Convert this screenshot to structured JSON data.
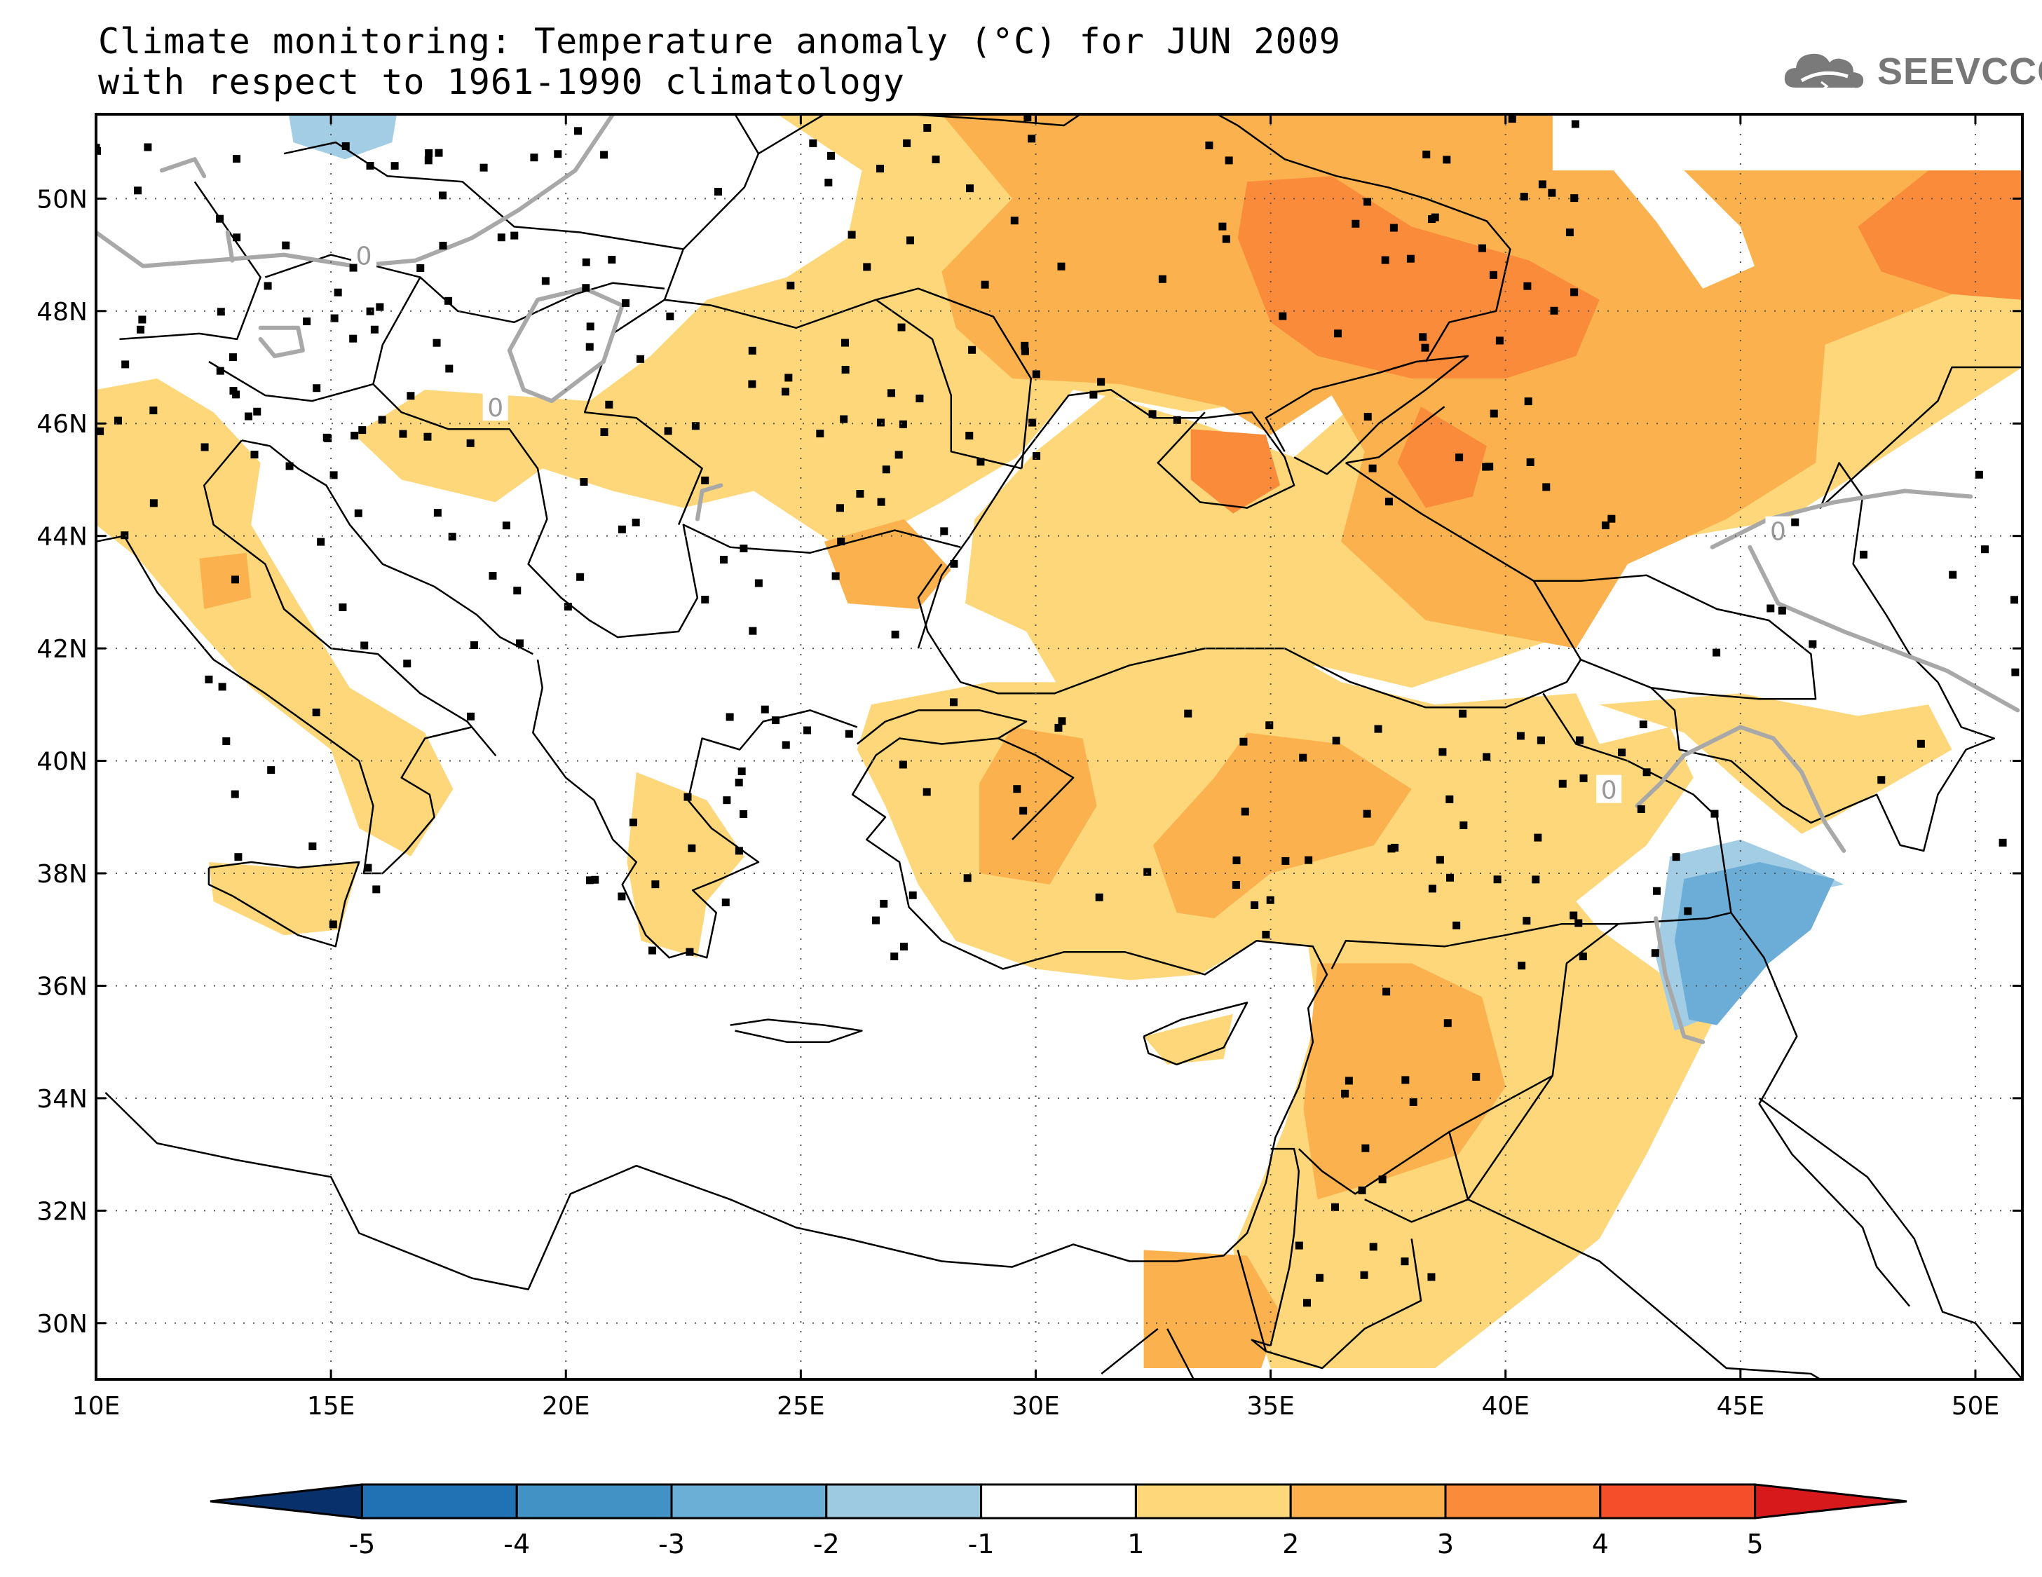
{
  "title_line1": "Climate monitoring: Temperature anomaly (°C) for JUN 2009",
  "title_line2": "with respect to 1961-1990 climatology",
  "logo": {
    "icon": "cloud-icon",
    "text": "SEEVCCC"
  },
  "map": {
    "lon_range": [
      10,
      51
    ],
    "lat_range": [
      29,
      51.5
    ],
    "lon_ticks": [
      {
        "value": 10,
        "label": "10E"
      },
      {
        "value": 15,
        "label": "15E"
      },
      {
        "value": 20,
        "label": "20E"
      },
      {
        "value": 25,
        "label": "25E"
      },
      {
        "value": 30,
        "label": "30E"
      },
      {
        "value": 35,
        "label": "35E"
      },
      {
        "value": 40,
        "label": "40E"
      },
      {
        "value": 45,
        "label": "45E"
      },
      {
        "value": 50,
        "label": "50E"
      }
    ],
    "lat_ticks": [
      {
        "value": 30,
        "label": "30N"
      },
      {
        "value": 32,
        "label": "32N"
      },
      {
        "value": 34,
        "label": "34N"
      },
      {
        "value": 36,
        "label": "36N"
      },
      {
        "value": 38,
        "label": "38N"
      },
      {
        "value": 40,
        "label": "40N"
      },
      {
        "value": 42,
        "label": "42N"
      },
      {
        "value": 44,
        "label": "44N"
      },
      {
        "value": 46,
        "label": "46N"
      },
      {
        "value": 48,
        "label": "48N"
      },
      {
        "value": 50,
        "label": "50N"
      }
    ],
    "zero_contour_label": "0",
    "anomaly_regions": [
      {
        "class": "1 to 2",
        "color": "#fdd77a",
        "polygon": [
          [
            24.5,
            51.5
          ],
          [
            41,
            51.5
          ],
          [
            41,
            50.5
          ],
          [
            51,
            50.5
          ],
          [
            51,
            47
          ],
          [
            46,
            44.3
          ],
          [
            42.5,
            43.8
          ],
          [
            41.5,
            42.3
          ],
          [
            38,
            41.3
          ],
          [
            36,
            41.7
          ],
          [
            33,
            41.2
          ],
          [
            30.5,
            41.3
          ],
          [
            29.8,
            42.3
          ],
          [
            28.5,
            42.8
          ],
          [
            28.7,
            44.3
          ],
          [
            30,
            45.5
          ],
          [
            31.5,
            46.5
          ],
          [
            33.5,
            46
          ],
          [
            35.5,
            45.4
          ],
          [
            37,
            46.5
          ],
          [
            38.5,
            47
          ],
          [
            37,
            47.3
          ],
          [
            35.5,
            46.5
          ],
          [
            33.3,
            46.2
          ],
          [
            30.8,
            46.6
          ],
          [
            29.6,
            45.4
          ],
          [
            28,
            44.6
          ],
          [
            26,
            43.7
          ],
          [
            24,
            44.8
          ],
          [
            22.5,
            44.5
          ],
          [
            21,
            44.8
          ],
          [
            19.5,
            45.2
          ],
          [
            18.5,
            44.6
          ],
          [
            16.5,
            45
          ],
          [
            15.5,
            45.8
          ],
          [
            17,
            46.6
          ],
          [
            20.5,
            46.4
          ],
          [
            21.8,
            47.2
          ],
          [
            23,
            48.2
          ],
          [
            24.7,
            48.6
          ],
          [
            26,
            49.3
          ],
          [
            26.3,
            50.5
          ]
        ]
      },
      {
        "class": "1 to 2",
        "color": "#fdd77a",
        "polygon": [
          [
            26.5,
            41
          ],
          [
            29,
            41.4
          ],
          [
            31,
            41.4
          ],
          [
            33.5,
            42
          ],
          [
            35,
            42.1
          ],
          [
            36.5,
            41.4
          ],
          [
            38.5,
            41
          ],
          [
            41.5,
            41.2
          ],
          [
            42,
            40.3
          ],
          [
            43.5,
            40.6
          ],
          [
            44,
            39.7
          ],
          [
            43,
            38.5
          ],
          [
            41.5,
            37.5
          ],
          [
            42,
            37
          ],
          [
            44.5,
            35.5
          ],
          [
            43,
            33
          ],
          [
            42,
            31.5
          ],
          [
            40.5,
            30.5
          ],
          [
            38.5,
            29.2
          ],
          [
            35,
            29.2
          ],
          [
            34.2,
            31.3
          ],
          [
            35.3,
            33.5
          ],
          [
            36,
            35.5
          ],
          [
            35.8,
            36.7
          ],
          [
            34.7,
            36.8
          ],
          [
            33.5,
            36.2
          ],
          [
            32,
            36.1
          ],
          [
            30,
            36.3
          ],
          [
            28.3,
            36.8
          ],
          [
            27.5,
            37.8
          ],
          [
            26.8,
            39.2
          ],
          [
            26.2,
            40.2
          ]
        ]
      },
      {
        "class": "1 to 2",
        "color": "#fdd77a",
        "polygon": [
          [
            42,
            41
          ],
          [
            45,
            41.2
          ],
          [
            47.5,
            40.8
          ],
          [
            49,
            41
          ],
          [
            49.5,
            40.2
          ],
          [
            47,
            39
          ],
          [
            46.3,
            38.7
          ],
          [
            45,
            39.6
          ],
          [
            43.8,
            40.5
          ]
        ]
      },
      {
        "class": "1 to 2",
        "color": "#fdd77a",
        "polygon": [
          [
            10,
            46.6
          ],
          [
            11.3,
            46.8
          ],
          [
            12.5,
            46.2
          ],
          [
            13.5,
            45.3
          ],
          [
            13.3,
            44.2
          ],
          [
            14.3,
            42.8
          ],
          [
            15.4,
            41.3
          ],
          [
            17,
            40.5
          ],
          [
            17.6,
            39.5
          ],
          [
            16.7,
            38.3
          ],
          [
            15.6,
            38.8
          ],
          [
            15,
            40.2
          ],
          [
            13.3,
            41.3
          ],
          [
            12.1,
            42.4
          ],
          [
            10.9,
            43.6
          ],
          [
            10,
            44.2
          ]
        ]
      },
      {
        "class": "1 to 2",
        "color": "#fdd77a",
        "polygon": [
          [
            12.4,
            38.2
          ],
          [
            14,
            38.1
          ],
          [
            15.6,
            38.2
          ],
          [
            15.2,
            37
          ],
          [
            14,
            36.9
          ],
          [
            12.5,
            37.5
          ]
        ]
      },
      {
        "class": "1 to 2",
        "color": "#fdd77a",
        "polygon": [
          [
            21.5,
            39.8
          ],
          [
            23,
            39.3
          ],
          [
            23.8,
            38.3
          ],
          [
            23,
            37.5
          ],
          [
            22.8,
            36.5
          ],
          [
            21.6,
            36.8
          ],
          [
            21.3,
            38.2
          ]
        ]
      },
      {
        "class": "1 to 2",
        "color": "#fdd77a",
        "polygon": [
          [
            32.3,
            35.1
          ],
          [
            34.2,
            35.5
          ],
          [
            34,
            34.7
          ],
          [
            32.8,
            34.6
          ]
        ]
      },
      {
        "class": "2 to 3",
        "color": "#fbb24e",
        "polygon": [
          [
            28,
            51.5
          ],
          [
            41,
            51.5
          ],
          [
            41,
            50.5
          ],
          [
            51,
            50.5
          ],
          [
            51,
            48.6
          ],
          [
            49.5,
            48.3
          ],
          [
            46.8,
            47.4
          ],
          [
            46.6,
            45.3
          ],
          [
            44.7,
            44.3
          ],
          [
            42.6,
            43.5
          ],
          [
            41.5,
            42
          ],
          [
            38.3,
            42.5
          ],
          [
            36.5,
            43.9
          ],
          [
            37,
            45.5
          ],
          [
            36.3,
            46.5
          ],
          [
            35,
            45.8
          ],
          [
            34,
            46.3
          ],
          [
            31.8,
            46.7
          ],
          [
            29.5,
            46.8
          ],
          [
            28.3,
            47.7
          ],
          [
            28,
            48.7
          ],
          [
            29.5,
            50
          ]
        ]
      },
      {
        "class": "2 to 3",
        "color": "#fbb24e",
        "polygon": [
          [
            34.5,
            40.5
          ],
          [
            36.5,
            40.3
          ],
          [
            38,
            39.5
          ],
          [
            37.2,
            38.5
          ],
          [
            35,
            38
          ],
          [
            33.8,
            37.2
          ],
          [
            33,
            37.3
          ],
          [
            32.5,
            38.5
          ],
          [
            33.8,
            39.7
          ]
        ]
      },
      {
        "class": "2 to 3",
        "color": "#fbb24e",
        "polygon": [
          [
            29.5,
            40.6
          ],
          [
            31,
            40.4
          ],
          [
            31.3,
            39.2
          ],
          [
            30.3,
            37.8
          ],
          [
            28.8,
            38
          ],
          [
            28.8,
            39.6
          ]
        ]
      },
      {
        "class": "2 to 3",
        "color": "#fbb24e",
        "polygon": [
          [
            36,
            36.4
          ],
          [
            38,
            36.4
          ],
          [
            39.5,
            35.8
          ],
          [
            40,
            34.2
          ],
          [
            39,
            33
          ],
          [
            37.2,
            32.5
          ],
          [
            36,
            32.2
          ],
          [
            35.7,
            33.8
          ]
        ]
      },
      {
        "class": "2 to 3",
        "color": "#fbb24e",
        "polygon": [
          [
            32.3,
            31.3
          ],
          [
            34.5,
            31.2
          ],
          [
            35.2,
            30.2
          ],
          [
            34.8,
            29.2
          ],
          [
            32.3,
            29.2
          ]
        ]
      },
      {
        "class": "2 to 3",
        "color": "#fbb24e",
        "polygon": [
          [
            25.5,
            43.9
          ],
          [
            27.2,
            44.3
          ],
          [
            28.2,
            43.4
          ],
          [
            27.5,
            42.7
          ],
          [
            26,
            42.8
          ]
        ]
      },
      {
        "class": "2 to 3",
        "color": "#fbb24e",
        "polygon": [
          [
            12.2,
            43.6
          ],
          [
            13.2,
            43.7
          ],
          [
            13.3,
            42.9
          ],
          [
            12.3,
            42.7
          ]
        ]
      },
      {
        "class": "3 to 4",
        "color": "#fa8b3a",
        "polygon": [
          [
            34.5,
            50.3
          ],
          [
            36.3,
            50.4
          ],
          [
            38,
            49.5
          ],
          [
            40.5,
            48.9
          ],
          [
            42,
            48.2
          ],
          [
            41.5,
            47.2
          ],
          [
            40,
            46.8
          ],
          [
            38,
            46.8
          ],
          [
            36,
            47.2
          ],
          [
            35,
            47.8
          ],
          [
            34.3,
            49.3
          ]
        ]
      },
      {
        "class": "3 to 4",
        "color": "#fa8b3a",
        "polygon": [
          [
            47.5,
            49.5
          ],
          [
            49,
            50.5
          ],
          [
            51,
            50.5
          ],
          [
            51,
            48.2
          ],
          [
            49.5,
            48.3
          ],
          [
            48,
            48.7
          ]
        ]
      },
      {
        "class": "3 to 4",
        "color": "#fa8b3a",
        "polygon": [
          [
            38.2,
            46.3
          ],
          [
            39.6,
            45.6
          ],
          [
            39.3,
            44.7
          ],
          [
            38.3,
            44.5
          ],
          [
            37.7,
            45.3
          ]
        ]
      },
      {
        "class": "3 to 4",
        "color": "#fa8b3a",
        "polygon": [
          [
            33.3,
            45.9
          ],
          [
            34.9,
            45.8
          ],
          [
            35.2,
            44.9
          ],
          [
            34.2,
            44.4
          ],
          [
            33.3,
            45
          ]
        ]
      },
      {
        "class": "-1 to -2",
        "color": "#a3cde5",
        "polygon": [
          [
            43.5,
            38.3
          ],
          [
            45,
            38.6
          ],
          [
            46.2,
            38.2
          ],
          [
            47.2,
            37.8
          ],
          [
            46,
            37.6
          ],
          [
            45.5,
            36.7
          ],
          [
            44.5,
            35.5
          ],
          [
            43.6,
            35.2
          ],
          [
            43.2,
            36.5
          ]
        ]
      },
      {
        "class": "-2 to -3",
        "color": "#6badd6",
        "polygon": [
          [
            43.8,
            37.9
          ],
          [
            45.4,
            38.2
          ],
          [
            47,
            37.9
          ],
          [
            46.5,
            37
          ],
          [
            45.6,
            36.4
          ],
          [
            44.5,
            35.3
          ],
          [
            43.9,
            35.4
          ],
          [
            43.6,
            36.8
          ]
        ]
      },
      {
        "class": "-2 to -3",
        "color": "#a3cde5",
        "polygon": [
          [
            14.1,
            51.5
          ],
          [
            16.4,
            51.5
          ],
          [
            16.3,
            51
          ],
          [
            15.3,
            50.7
          ],
          [
            14.2,
            51
          ]
        ]
      },
      {
        "class": "below 1",
        "color": "#ffffff",
        "polygon": [
          [
            42,
            50.8
          ],
          [
            43.2,
            51
          ],
          [
            45,
            49.5
          ],
          [
            45.3,
            48.8
          ],
          [
            44.2,
            48.4
          ],
          [
            43.2,
            49.6
          ]
        ]
      }
    ]
  },
  "colorbar": {
    "labels": [
      "-5",
      "-4",
      "-3",
      "-2",
      "-1",
      "1",
      "2",
      "3",
      "4",
      "5"
    ],
    "colors": [
      "#08306b",
      "#2171b5",
      "#4292c6",
      "#6baed6",
      "#9ecae1",
      "#ffffff",
      "#fdd77a",
      "#fbb24e",
      "#fa8b3a",
      "#f44e2b",
      "#d7191c"
    ]
  }
}
